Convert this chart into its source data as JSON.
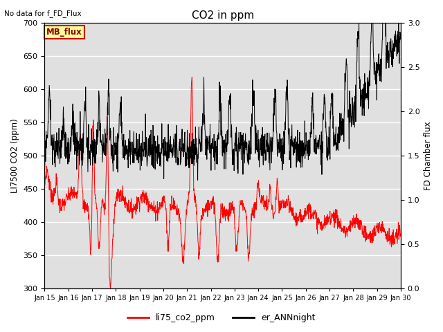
{
  "title": "CO2 in ppm",
  "top_left_text": "No data for f_FD_Flux",
  "ylabel_left": "LI7500 CO2 (ppm)",
  "ylabel_right": "FD Chamber flux",
  "ylim_left": [
    300,
    700
  ],
  "ylim_right": [
    0.0,
    3.0
  ],
  "yticks_left": [
    300,
    350,
    400,
    450,
    500,
    550,
    600,
    650,
    700
  ],
  "yticks_right": [
    0.0,
    0.5,
    1.0,
    1.5,
    2.0,
    2.5,
    3.0
  ],
  "xtick_labels": [
    "Jan 15",
    "Jan 16",
    "Jan 17",
    "Jan 18",
    "Jan 19",
    "Jan 20",
    "Jan 21",
    "Jan 22",
    "Jan 23",
    "Jan 24",
    "Jan 25",
    "Jan 26",
    "Jan 27",
    "Jan 28",
    "Jan 29",
    "Jan 30"
  ],
  "legend_labels": [
    "li75_co2_ppm",
    "er_ANNnight"
  ],
  "legend_colors": [
    "red",
    "black"
  ],
  "box_label": "MB_flux",
  "box_color": "#ffff99",
  "box_border_color": "#cc0000",
  "red_line_color": "red",
  "black_line_color": "black",
  "background_color": "#e0e0e0",
  "figsize": [
    6.4,
    4.8
  ],
  "dpi": 100
}
